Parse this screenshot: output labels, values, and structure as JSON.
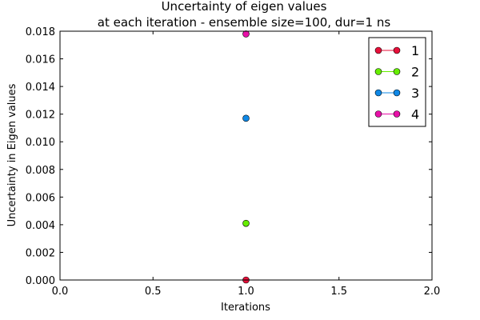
{
  "chart_data": {
    "type": "line",
    "title_line1": "Uncertainty of eigen values",
    "title_line2": "at each iteration - ensemble size=100, dur=1 ns",
    "xlabel": "Iterations",
    "ylabel": "Uncertainty in Eigen values",
    "xlim": [
      0.0,
      2.0
    ],
    "ylim": [
      0.0,
      0.018
    ],
    "xticks": [
      "0.0",
      "0.5",
      "1.0",
      "1.5",
      "2.0"
    ],
    "xtick_values": [
      0.0,
      0.5,
      1.0,
      1.5,
      2.0
    ],
    "yticks": [
      "0.000",
      "0.002",
      "0.004",
      "0.006",
      "0.008",
      "0.010",
      "0.012",
      "0.014",
      "0.016",
      "0.018"
    ],
    "ytick_values": [
      0.0,
      0.002,
      0.004,
      0.006,
      0.008,
      0.01,
      0.012,
      0.014,
      0.016,
      0.018
    ],
    "grid": false,
    "legend_position": "top-right",
    "series": [
      {
        "name": "1",
        "color": "#e8103a",
        "x": [
          1.0
        ],
        "y": [
          0.0
        ]
      },
      {
        "name": "2",
        "color": "#66ee00",
        "x": [
          1.0
        ],
        "y": [
          0.0041
        ]
      },
      {
        "name": "3",
        "color": "#0f88e6",
        "x": [
          1.0
        ],
        "y": [
          0.0117
        ]
      },
      {
        "name": "4",
        "color": "#e810a8",
        "x": [
          1.0
        ],
        "y": [
          0.0178
        ]
      }
    ]
  }
}
